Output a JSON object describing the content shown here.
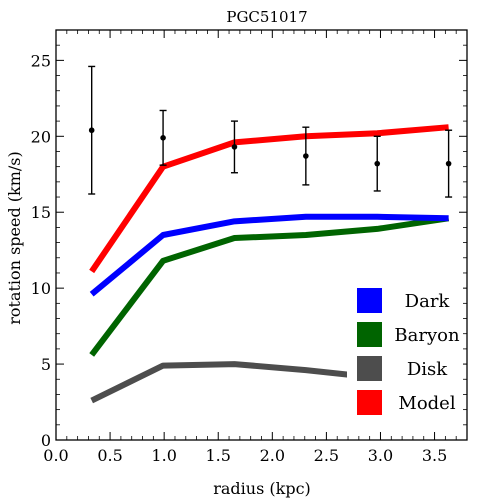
{
  "chart_data": {
    "type": "line",
    "title": "PGC51017",
    "xlabel": "radius (kpc)",
    "ylabel": "rotation speed (km/s)",
    "xlim": [
      0.0,
      3.8
    ],
    "ylim": [
      0,
      27
    ],
    "x_ticks": [
      0.0,
      0.5,
      1.0,
      1.5,
      2.0,
      2.5,
      3.0,
      3.5
    ],
    "x_tick_labels": [
      "0.0",
      "0.5",
      "1.0",
      "1.5",
      "2.0",
      "2.5",
      "3.0",
      "3.5"
    ],
    "y_ticks": [
      0,
      5,
      10,
      15,
      20,
      25
    ],
    "y_tick_labels": [
      "0",
      "5",
      "10",
      "15",
      "20",
      "25"
    ],
    "x": [
      0.33,
      0.99,
      1.65,
      2.31,
      2.97,
      3.63
    ],
    "series": [
      {
        "name": "Dark",
        "color": "#0000ff",
        "values": [
          9.6,
          13.5,
          14.4,
          14.7,
          14.7,
          14.6
        ]
      },
      {
        "name": "Baryon",
        "color": "#006400",
        "values": [
          5.6,
          11.8,
          13.3,
          13.5,
          13.9,
          14.6
        ]
      },
      {
        "name": "Disk",
        "color": "#4d4d4d",
        "values": [
          2.6,
          4.9,
          5.0,
          4.6,
          4.1,
          3.5
        ]
      },
      {
        "name": "Model",
        "color": "#ff0000",
        "values": [
          11.1,
          18.0,
          19.6,
          20.0,
          20.2,
          20.6
        ]
      }
    ],
    "observed": {
      "values": [
        20.4,
        19.9,
        19.3,
        18.7,
        18.2,
        18.2
      ],
      "errors": [
        4.2,
        1.8,
        1.7,
        1.9,
        1.8,
        2.2
      ]
    },
    "legend_position": "bottom-right",
    "grid": false
  }
}
